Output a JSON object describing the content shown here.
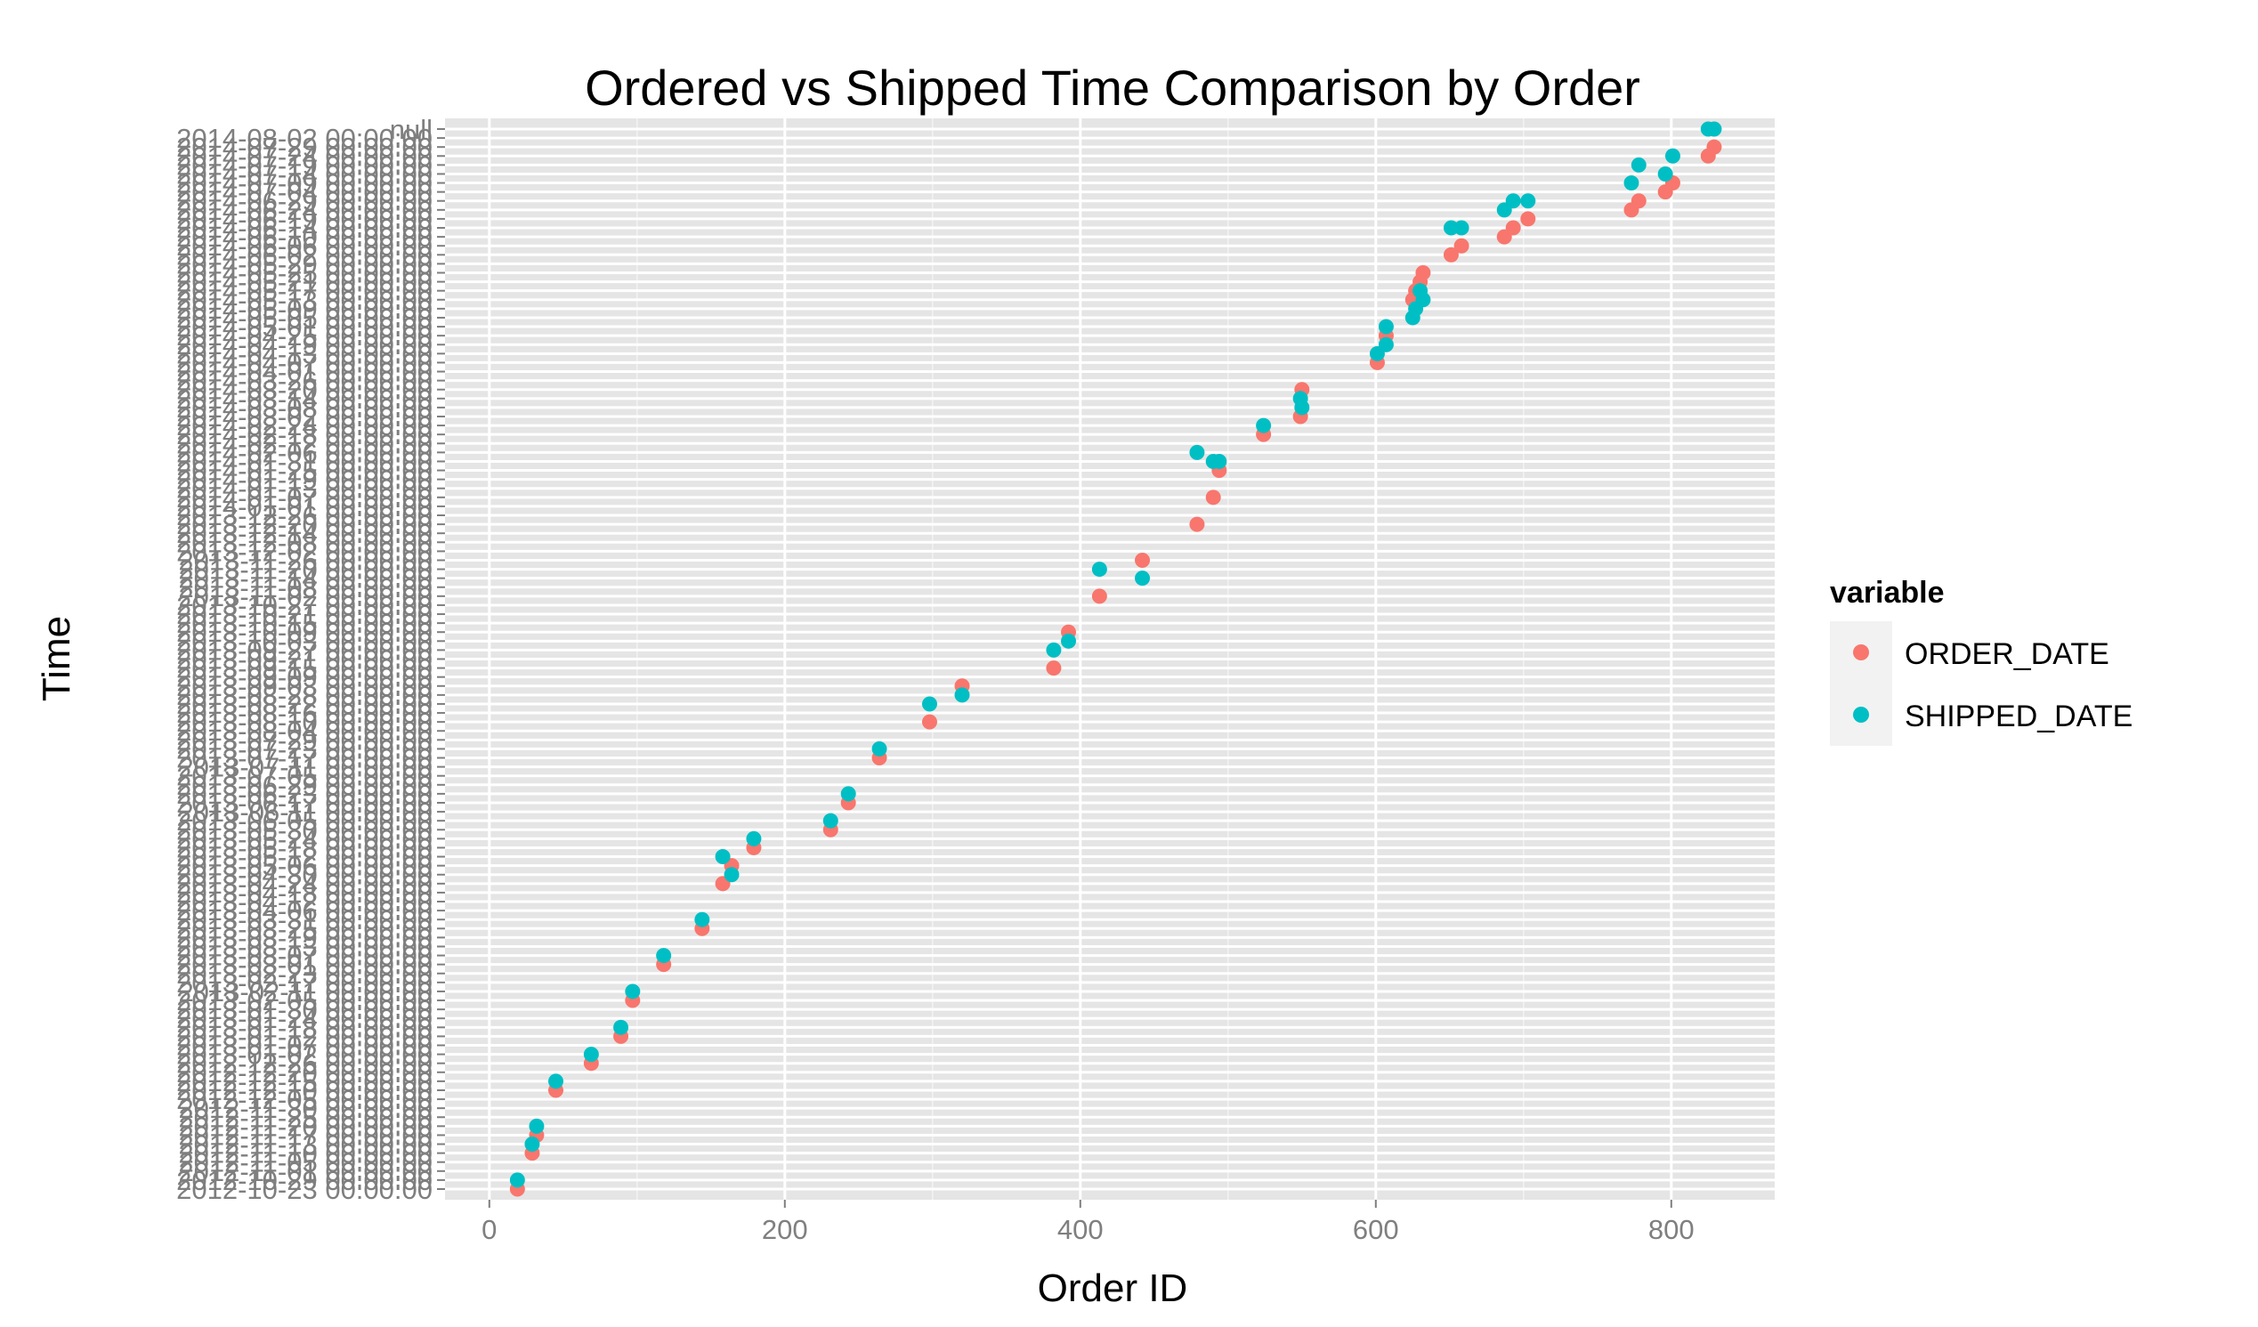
{
  "chart_data": {
    "type": "scatter",
    "title": "Ordered vs Shipped Time Comparison by Order",
    "xlabel": "Order ID",
    "ylabel": "Time",
    "xlim": [
      -30,
      870
    ],
    "x_ticks": [
      0,
      200,
      400,
      600,
      800
    ],
    "grid": true,
    "legend": {
      "title": "variable",
      "position": "right"
    },
    "y_categories": [
      "2012-10-23 00:00:00",
      "2012-10-29 00:00:00",
      "2012-11-01 00:00:00",
      "2012-11-05 00:00:00",
      "2012-11-10 00:00:00",
      "2012-11-13 00:00:00",
      "2012-11-17 00:00:00",
      "2012-11-20 00:00:00",
      "2012-11-25 00:00:00",
      "2012-11-30 00:00:00",
      "2012-12-05 00:00:00",
      "2012-12-10 00:00:00",
      "2012-12-15 00:00:00",
      "2012-12-20 00:00:00",
      "2012-12-26 00:00:00",
      "2013-01-02 00:00:00",
      "2013-01-07 00:00:00",
      "2013-01-12 00:00:00",
      "2013-01-18 00:00:00",
      "2013-01-24 00:00:00",
      "2013-01-30 00:00:00",
      "2013-02-05 00:00:00",
      "2013-02-11 00:00:00",
      "2013-02-17 00:00:00",
      "2013-02-23 00:00:00",
      "2013-03-01 00:00:00",
      "2013-03-07 00:00:00",
      "2013-03-13 00:00:00",
      "2013-03-19 00:00:00",
      "2013-03-25 00:00:00",
      "2013-03-31 00:00:00",
      "2013-04-06 00:00:00",
      "2013-04-12 00:00:00",
      "2013-04-18 00:00:00",
      "2013-04-24 00:00:00",
      "2013-04-30 00:00:00",
      "2013-05-06 00:00:00",
      "2013-05-12 00:00:00",
      "2013-05-18 00:00:00",
      "2013-05-24 00:00:00",
      "2013-05-30 00:00:00",
      "2013-06-05 00:00:00",
      "2013-06-11 00:00:00",
      "2013-06-17 00:00:00",
      "2013-06-23 00:00:00",
      "2013-06-29 00:00:00",
      "2013-07-05 00:00:00",
      "2013-07-11 00:00:00",
      "2013-07-17 00:00:00",
      "2013-07-23 00:00:00",
      "2013-07-29 00:00:00",
      "2013-08-04 00:00:00",
      "2013-08-10 00:00:00",
      "2013-08-16 00:00:00",
      "2013-08-22 00:00:00",
      "2013-08-28 00:00:00",
      "2013-09-03 00:00:00",
      "2013-09-09 00:00:00",
      "2013-09-15 00:00:00",
      "2013-09-21 00:00:00",
      "2013-09-27 00:00:00",
      "2013-10-03 00:00:00",
      "2013-10-09 00:00:00",
      "2013-10-15 00:00:00",
      "2013-10-21 00:00:00",
      "2013-10-27 00:00:00",
      "2013-11-02 00:00:00",
      "2013-11-08 00:00:00",
      "2013-11-14 00:00:00",
      "2013-11-20 00:00:00",
      "2013-11-26 00:00:00",
      "2013-12-02 00:00:00",
      "2013-12-08 00:00:00",
      "2013-12-14 00:00:00",
      "2013-12-20 00:00:00",
      "2013-12-26 00:00:00",
      "2014-01-01 00:00:00",
      "2014-01-07 00:00:00",
      "2014-01-13 00:00:00",
      "2014-01-19 00:00:00",
      "2014-01-25 00:00:00",
      "2014-01-31 00:00:00",
      "2014-02-06 00:00:00",
      "2014-02-12 00:00:00",
      "2014-02-18 00:00:00",
      "2014-02-24 00:00:00",
      "2014-03-02 00:00:00",
      "2014-03-08 00:00:00",
      "2014-03-14 00:00:00",
      "2014-03-20 00:00:00",
      "2014-03-26 00:00:00",
      "2014-04-01 00:00:00",
      "2014-04-07 00:00:00",
      "2014-04-13 00:00:00",
      "2014-04-19 00:00:00",
      "2014-04-25 00:00:00",
      "2014-05-01 00:00:00",
      "2014-05-05 00:00:00",
      "2014-05-09 00:00:00",
      "2014-05-13 00:00:00",
      "2014-05-17 00:00:00",
      "2014-05-21 00:00:00",
      "2014-05-25 00:00:00",
      "2014-05-29 00:00:00",
      "2014-06-02 00:00:00",
      "2014-06-06 00:00:00",
      "2014-06-10 00:00:00",
      "2014-06-14 00:00:00",
      "2014-06-19 00:00:00",
      "2014-06-24 00:00:00",
      "2014-06-29 00:00:00",
      "2014-07-04 00:00:00",
      "2014-07-09 00:00:00",
      "2014-07-14 00:00:00",
      "2014-07-19 00:00:00",
      "2014-07-24 00:00:00",
      "2014-07-29 00:00:00",
      "2014-08-02 00:00:00",
      "null"
    ],
    "series": [
      {
        "name": "ORDER_DATE",
        "color": "#f8766d",
        "points": [
          [
            19,
            "2012-10-23 00:00:00"
          ],
          [
            29,
            "2012-11-10 00:00:00"
          ],
          [
            32,
            "2012-11-17 00:00:00"
          ],
          [
            45,
            "2012-12-10 00:00:00"
          ],
          [
            69,
            "2012-12-26 00:00:00"
          ],
          [
            89,
            "2013-01-12 00:00:00"
          ],
          [
            97,
            "2013-02-05 00:00:00"
          ],
          [
            118,
            "2013-03-01 00:00:00"
          ],
          [
            144,
            "2013-03-25 00:00:00"
          ],
          [
            158,
            "2013-04-24 00:00:00"
          ],
          [
            164,
            "2013-05-06 00:00:00"
          ],
          [
            179,
            "2013-05-18 00:00:00"
          ],
          [
            231,
            "2013-05-30 00:00:00"
          ],
          [
            243,
            "2013-06-17 00:00:00"
          ],
          [
            264,
            "2013-07-17 00:00:00"
          ],
          [
            298,
            "2013-08-10 00:00:00"
          ],
          [
            320,
            "2013-09-03 00:00:00"
          ],
          [
            382,
            "2013-09-15 00:00:00"
          ],
          [
            392,
            "2013-10-09 00:00:00"
          ],
          [
            413,
            "2013-11-02 00:00:00"
          ],
          [
            442,
            "2013-11-26 00:00:00"
          ],
          [
            479,
            "2013-12-20 00:00:00"
          ],
          [
            490,
            "2014-01-07 00:00:00"
          ],
          [
            494,
            "2014-01-25 00:00:00"
          ],
          [
            524,
            "2014-02-18 00:00:00"
          ],
          [
            549,
            "2014-03-02 00:00:00"
          ],
          [
            550,
            "2014-03-20 00:00:00"
          ],
          [
            601,
            "2014-04-07 00:00:00"
          ],
          [
            607,
            "2014-04-25 00:00:00"
          ],
          [
            625,
            "2014-05-13 00:00:00"
          ],
          [
            627,
            "2014-05-17 00:00:00"
          ],
          [
            630,
            "2014-05-21 00:00:00"
          ],
          [
            632,
            "2014-05-25 00:00:00"
          ],
          [
            651,
            "2014-06-02 00:00:00"
          ],
          [
            658,
            "2014-06-06 00:00:00"
          ],
          [
            687,
            "2014-06-10 00:00:00"
          ],
          [
            693,
            "2014-06-14 00:00:00"
          ],
          [
            703,
            "2014-06-19 00:00:00"
          ],
          [
            773,
            "2014-06-24 00:00:00"
          ],
          [
            778,
            "2014-06-29 00:00:00"
          ],
          [
            796,
            "2014-07-04 00:00:00"
          ],
          [
            801,
            "2014-07-09 00:00:00"
          ],
          [
            825,
            "2014-07-24 00:00:00"
          ],
          [
            829,
            "2014-07-29 00:00:00"
          ]
        ]
      },
      {
        "name": "SHIPPED_DATE",
        "color": "#00bfc4",
        "points": [
          [
            19,
            "2012-10-29 00:00:00"
          ],
          [
            29,
            "2012-11-13 00:00:00"
          ],
          [
            32,
            "2012-11-20 00:00:00"
          ],
          [
            45,
            "2012-12-15 00:00:00"
          ],
          [
            69,
            "2013-01-02 00:00:00"
          ],
          [
            89,
            "2013-01-18 00:00:00"
          ],
          [
            97,
            "2013-02-11 00:00:00"
          ],
          [
            118,
            "2013-03-07 00:00:00"
          ],
          [
            144,
            "2013-03-31 00:00:00"
          ],
          [
            158,
            "2013-05-12 00:00:00"
          ],
          [
            164,
            "2013-04-30 00:00:00"
          ],
          [
            179,
            "2013-05-24 00:00:00"
          ],
          [
            231,
            "2013-06-05 00:00:00"
          ],
          [
            243,
            "2013-06-23 00:00:00"
          ],
          [
            264,
            "2013-07-23 00:00:00"
          ],
          [
            298,
            "2013-08-22 00:00:00"
          ],
          [
            320,
            "2013-08-28 00:00:00"
          ],
          [
            382,
            "2013-09-27 00:00:00"
          ],
          [
            392,
            "2013-10-03 00:00:00"
          ],
          [
            413,
            "2013-11-20 00:00:00"
          ],
          [
            442,
            "2013-11-14 00:00:00"
          ],
          [
            479,
            "2014-02-06 00:00:00"
          ],
          [
            490,
            "2014-01-31 00:00:00"
          ],
          [
            494,
            "2014-01-31 00:00:00"
          ],
          [
            524,
            "2014-02-24 00:00:00"
          ],
          [
            549,
            "2014-03-14 00:00:00"
          ],
          [
            550,
            "2014-03-08 00:00:00"
          ],
          [
            601,
            "2014-04-13 00:00:00"
          ],
          [
            607,
            "2014-04-19 00:00:00"
          ],
          [
            607,
            "2014-05-01 00:00:00"
          ],
          [
            625,
            "2014-05-05 00:00:00"
          ],
          [
            627,
            "2014-05-09 00:00:00"
          ],
          [
            630,
            "2014-05-17 00:00:00"
          ],
          [
            632,
            "2014-05-13 00:00:00"
          ],
          [
            651,
            "2014-06-14 00:00:00"
          ],
          [
            658,
            "2014-06-14 00:00:00"
          ],
          [
            687,
            "2014-06-24 00:00:00"
          ],
          [
            693,
            "2014-06-29 00:00:00"
          ],
          [
            703,
            "2014-06-29 00:00:00"
          ],
          [
            773,
            "2014-07-09 00:00:00"
          ],
          [
            778,
            "2014-07-19 00:00:00"
          ],
          [
            796,
            "2014-07-14 00:00:00"
          ],
          [
            801,
            "2014-07-24 00:00:00"
          ],
          [
            825,
            "null"
          ],
          [
            829,
            "null"
          ]
        ]
      }
    ]
  }
}
